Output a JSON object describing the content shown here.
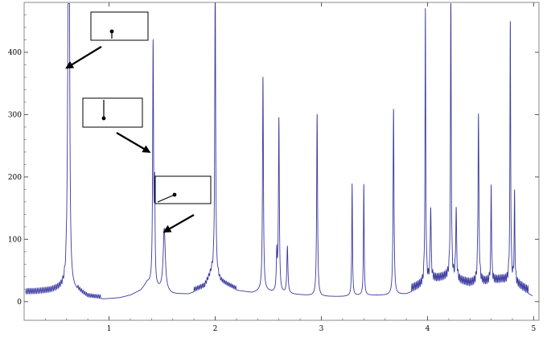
{
  "chart_data": {
    "type": "line",
    "title": "",
    "xlabel": "",
    "ylabel": "",
    "xlim": [
      0.2,
      5.05
    ],
    "ylim": [
      -30,
      480
    ],
    "x_ticks": [
      1,
      2,
      3,
      4,
      5
    ],
    "x_tick_labels": [
      "1",
      "2",
      "3",
      "4",
      "5"
    ],
    "y_ticks": [
      0,
      100,
      200,
      300,
      400
    ],
    "y_tick_labels": [
      "0",
      "100",
      "200",
      "300",
      "400"
    ],
    "grid": false,
    "legend": "none",
    "line_color": "#3a3aa0",
    "frame_color": "#888888",
    "series": [
      {
        "baseline": [
          [
            0.2,
            12
          ],
          [
            0.3,
            12
          ],
          [
            0.45,
            14
          ],
          [
            0.55,
            18
          ],
          [
            0.62,
            22
          ],
          [
            0.7,
            16
          ],
          [
            0.8,
            6
          ],
          [
            0.95,
            4
          ],
          [
            1.1,
            6
          ],
          [
            1.2,
            10
          ],
          [
            1.3,
            18
          ],
          [
            1.36,
            30
          ],
          [
            1.45,
            20
          ],
          [
            1.6,
            12
          ],
          [
            1.75,
            12
          ],
          [
            1.9,
            22
          ],
          [
            1.97,
            45
          ],
          [
            2.05,
            30
          ],
          [
            2.2,
            18
          ],
          [
            2.35,
            14
          ],
          [
            2.45,
            18
          ],
          [
            2.55,
            14
          ],
          [
            2.7,
            12
          ],
          [
            2.85,
            10
          ],
          [
            3.0,
            8
          ],
          [
            3.2,
            8
          ],
          [
            3.4,
            10
          ],
          [
            3.6,
            10
          ],
          [
            3.8,
            12
          ],
          [
            3.95,
            22
          ],
          [
            4.05,
            30
          ],
          [
            4.2,
            35
          ],
          [
            4.3,
            28
          ],
          [
            4.4,
            24
          ],
          [
            4.55,
            26
          ],
          [
            4.7,
            30
          ],
          [
            4.85,
            22
          ],
          [
            5.0,
            8
          ]
        ],
        "ripple": [
          {
            "from": 0.2,
            "to": 0.6,
            "amp": 9,
            "period": 0.016
          },
          {
            "from": 0.7,
            "to": 0.92,
            "amp": 6,
            "period": 0.016
          },
          {
            "from": 1.8,
            "to": 2.0,
            "amp": 7,
            "period": 0.015
          },
          {
            "from": 2.02,
            "to": 2.2,
            "amp": 6,
            "period": 0.015
          },
          {
            "from": 3.85,
            "to": 4.95,
            "amp": 12,
            "period": 0.014
          }
        ],
        "peaks": [
          {
            "x": 0.615,
            "y": 385,
            "w": 0.008
          },
          {
            "x": 0.625,
            "y": 432,
            "w": 0.006
          },
          {
            "x": 1.415,
            "y": 386,
            "w": 0.005
          },
          {
            "x": 1.43,
            "y": 145,
            "w": 0.004
          },
          {
            "x": 1.52,
            "y": 100,
            "w": 0.012
          },
          {
            "x": 2.0,
            "y": 470,
            "w": 0.005
          },
          {
            "x": 2.45,
            "y": 342,
            "w": 0.005
          },
          {
            "x": 2.6,
            "y": 278,
            "w": 0.005
          },
          {
            "x": 2.58,
            "y": 60,
            "w": 0.005
          },
          {
            "x": 2.68,
            "y": 75,
            "w": 0.006
          },
          {
            "x": 2.96,
            "y": 292,
            "w": 0.005
          },
          {
            "x": 3.29,
            "y": 180,
            "w": 0.004
          },
          {
            "x": 3.4,
            "y": 178,
            "w": 0.004
          },
          {
            "x": 3.68,
            "y": 298,
            "w": 0.005
          },
          {
            "x": 3.98,
            "y": 433,
            "w": 0.004
          },
          {
            "x": 4.03,
            "y": 118,
            "w": 0.005
          },
          {
            "x": 4.22,
            "y": 472,
            "w": 0.004
          },
          {
            "x": 4.27,
            "y": 112,
            "w": 0.005
          },
          {
            "x": 4.48,
            "y": 270,
            "w": 0.005
          },
          {
            "x": 4.6,
            "y": 156,
            "w": 0.004
          },
          {
            "x": 4.78,
            "y": 414,
            "w": 0.004
          },
          {
            "x": 4.82,
            "y": 140,
            "w": 0.004
          }
        ]
      }
    ],
    "annotations": [
      {
        "inset": "dot-on-top-stem",
        "arrow_to": [
          0.6,
          375
        ]
      },
      {
        "inset": "dot-on-bottom-stem",
        "arrow_to": [
          1.38,
          240
        ]
      },
      {
        "inset": "dot-on-tilted-stem",
        "arrow_to": [
          1.52,
          112
        ]
      }
    ]
  }
}
